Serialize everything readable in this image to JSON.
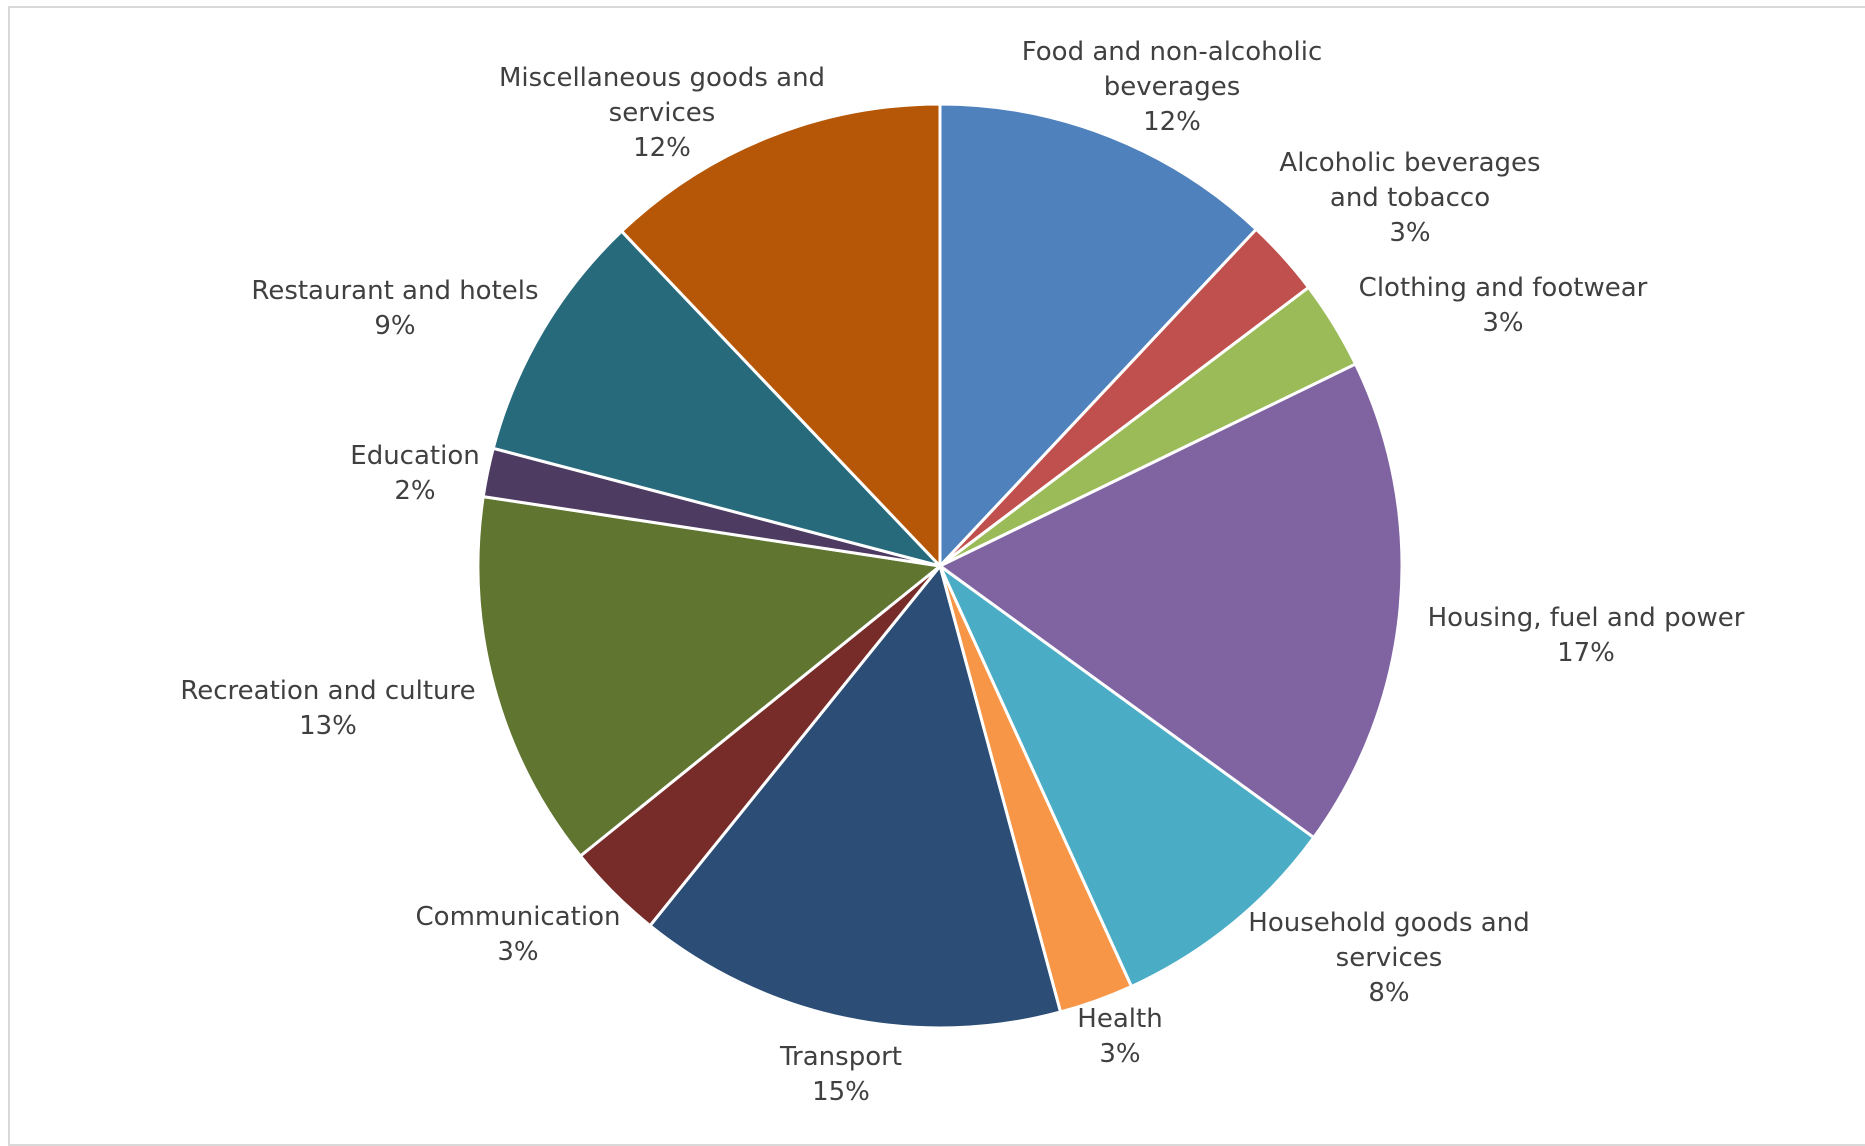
{
  "chart_data": {
    "type": "pie",
    "title": "",
    "legend": "none",
    "data_labels": "category name and percentage",
    "start_angle": "12 o'clock, clockwise",
    "slices": [
      {
        "label": "Food and non-alcoholic beverages",
        "lines": [
          "Food and non-alcoholic",
          "beverages"
        ],
        "percent_label": "12%",
        "value": 12.0,
        "color": "#4F81BD"
      },
      {
        "label": "Alcoholic beverages and tobacco",
        "lines": [
          "Alcoholic beverages",
          "and tobacco"
        ],
        "percent_label": "3%",
        "value": 2.7,
        "color": "#C0504D"
      },
      {
        "label": "Clothing and footwear",
        "lines": [
          "Clothing and footwear"
        ],
        "percent_label": "3%",
        "value": 3.1,
        "color": "#9BBB59"
      },
      {
        "label": "Housing, fuel and power",
        "lines": [
          "Housing, fuel and power"
        ],
        "percent_label": "17%",
        "value": 17.2,
        "color": "#8064A2"
      },
      {
        "label": "Household goods and services",
        "lines": [
          "Household goods and",
          "services"
        ],
        "percent_label": "8%",
        "value": 8.2,
        "color": "#4BACC6"
      },
      {
        "label": "Health",
        "lines": [
          "Health"
        ],
        "percent_label": "3%",
        "value": 2.6,
        "color": "#F79646"
      },
      {
        "label": "Transport",
        "lines": [
          "Transport"
        ],
        "percent_label": "15%",
        "value": 15.0,
        "color": "#2C4D75"
      },
      {
        "label": "Communication",
        "lines": [
          "Communication"
        ],
        "percent_label": "3%",
        "value": 3.4,
        "color": "#772C2A"
      },
      {
        "label": "Recreation and culture",
        "lines": [
          "Recreation and culture"
        ],
        "percent_label": "13%",
        "value": 13.2,
        "color": "#5F7530"
      },
      {
        "label": "Education",
        "lines": [
          "Education"
        ],
        "percent_label": "2%",
        "value": 1.7,
        "color": "#4D3B62"
      },
      {
        "label": "Restaurant and hotels",
        "lines": [
          "Restaurant and hotels"
        ],
        "percent_label": "9%",
        "value": 8.8,
        "color": "#276A7C"
      },
      {
        "label": "Miscellaneous goods and services",
        "lines": [
          "Miscellaneous goods and",
          "services"
        ],
        "percent_label": "12%",
        "value": 12.1,
        "color": "#B65708"
      }
    ]
  }
}
